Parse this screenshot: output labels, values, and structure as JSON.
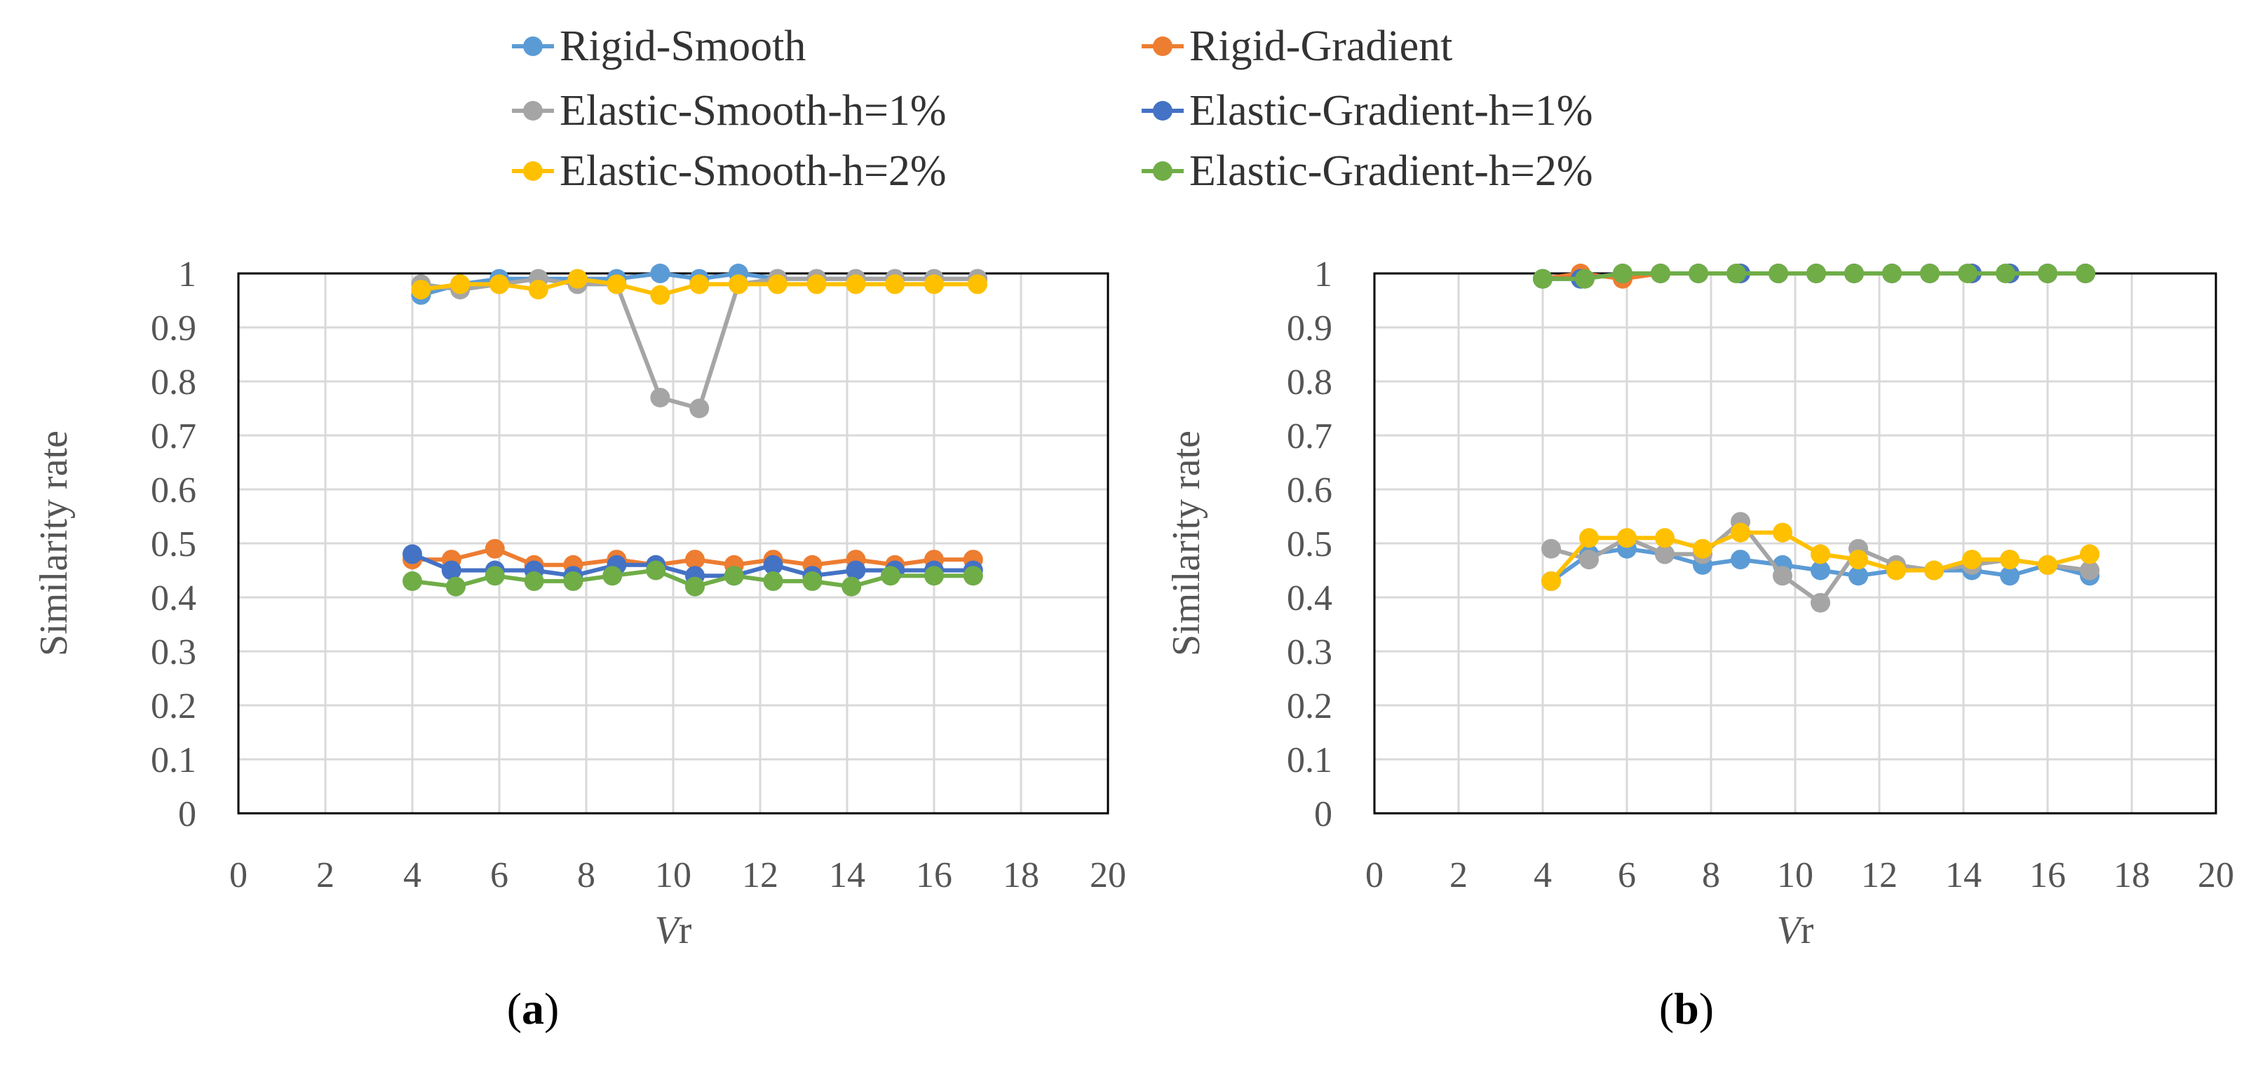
{
  "legend": [
    {
      "name": "Rigid-Smooth",
      "color": "#5B9BD5"
    },
    {
      "name": "Rigid-Gradient",
      "color": "#ED7D31"
    },
    {
      "name": "Elastic-Smooth-h=1%",
      "color": "#A5A5A5"
    },
    {
      "name": "Elastic-Gradient-h=1%",
      "color": "#4472C4"
    },
    {
      "name": "Elastic-Smooth-h=2%",
      "color": "#FFC000"
    },
    {
      "name": "Elastic-Gradient-h=2%",
      "color": "#70AD47"
    }
  ],
  "chart_data": [
    {
      "type": "line",
      "panel_label": "(a)",
      "xlabel_italic": "V",
      "xlabel_sub": "r",
      "ylabel": "Similarity rate",
      "xlim": [
        0,
        20
      ],
      "ylim": [
        0,
        1
      ],
      "x_ticks": [
        "0",
        "2",
        "4",
        "6",
        "8",
        "10",
        "12",
        "14",
        "16",
        "18",
        "20"
      ],
      "y_ticks": [
        "0",
        "0.1",
        "0.2",
        "0.3",
        "0.4",
        "0.5",
        "0.6",
        "0.7",
        "0.8",
        "0.9",
        "1"
      ],
      "series": [
        {
          "name": "Rigid-Smooth",
          "color": "#5B9BD5",
          "x": [
            4.2,
            5.1,
            6.0,
            6.9,
            7.8,
            8.7,
            9.7,
            10.6,
            11.5,
            12.4,
            13.3,
            14.2,
            15.1,
            16.0,
            17.0
          ],
          "y": [
            0.96,
            0.98,
            0.99,
            0.99,
            0.99,
            0.99,
            1.0,
            0.99,
            1.0,
            0.99,
            0.99,
            0.99,
            0.99,
            0.99,
            0.99
          ]
        },
        {
          "name": "Rigid-Gradient",
          "color": "#ED7D31",
          "x": [
            4.0,
            4.9,
            5.9,
            6.8,
            7.7,
            8.7,
            9.6,
            10.5,
            11.4,
            12.3,
            13.2,
            14.2,
            15.1,
            16.0,
            16.9
          ],
          "y": [
            0.47,
            0.47,
            0.49,
            0.46,
            0.46,
            0.47,
            0.46,
            0.47,
            0.46,
            0.47,
            0.46,
            0.47,
            0.46,
            0.47,
            0.47
          ]
        },
        {
          "name": "Elastic-Smooth-h=1%",
          "color": "#A5A5A5",
          "x": [
            4.2,
            5.1,
            6.0,
            6.9,
            7.8,
            8.7,
            9.7,
            10.6,
            11.5,
            12.4,
            13.3,
            14.2,
            15.1,
            16.0,
            17.0
          ],
          "y": [
            0.98,
            0.97,
            0.98,
            0.99,
            0.98,
            0.98,
            0.77,
            0.75,
            0.98,
            0.99,
            0.99,
            0.99,
            0.99,
            0.99,
            0.99
          ]
        },
        {
          "name": "Elastic-Gradient-h=1%",
          "color": "#4472C4",
          "x": [
            4.0,
            4.9,
            5.9,
            6.8,
            7.7,
            8.7,
            9.6,
            10.5,
            11.4,
            12.3,
            13.2,
            14.2,
            15.1,
            16.0,
            16.9
          ],
          "y": [
            0.48,
            0.45,
            0.45,
            0.45,
            0.44,
            0.46,
            0.46,
            0.44,
            0.44,
            0.46,
            0.44,
            0.45,
            0.45,
            0.45,
            0.45
          ]
        },
        {
          "name": "Elastic-Smooth-h=2%",
          "color": "#FFC000",
          "x": [
            4.2,
            5.1,
            6.0,
            6.9,
            7.8,
            8.7,
            9.7,
            10.6,
            11.5,
            12.4,
            13.3,
            14.2,
            15.1,
            16.0,
            17.0
          ],
          "y": [
            0.97,
            0.98,
            0.98,
            0.97,
            0.99,
            0.98,
            0.96,
            0.98,
            0.98,
            0.98,
            0.98,
            0.98,
            0.98,
            0.98,
            0.98
          ]
        },
        {
          "name": "Elastic-Gradient-h=2%",
          "color": "#70AD47",
          "x": [
            4.0,
            5.0,
            5.9,
            6.8,
            7.7,
            8.6,
            9.6,
            10.5,
            11.4,
            12.3,
            13.2,
            14.1,
            15.0,
            16.0,
            16.9
          ],
          "y": [
            0.43,
            0.42,
            0.44,
            0.43,
            0.43,
            0.44,
            0.45,
            0.42,
            0.44,
            0.43,
            0.43,
            0.42,
            0.44,
            0.44,
            0.44
          ]
        }
      ]
    },
    {
      "type": "line",
      "panel_label": "(b)",
      "xlabel_italic": "V",
      "xlabel_sub": "r",
      "ylabel": "Similarity rate",
      "xlim": [
        0,
        20
      ],
      "ylim": [
        0,
        1
      ],
      "x_ticks": [
        "0",
        "2",
        "4",
        "6",
        "8",
        "10",
        "12",
        "14",
        "16",
        "18",
        "20"
      ],
      "y_ticks": [
        "0",
        "0.1",
        "0.2",
        "0.3",
        "0.4",
        "0.5",
        "0.6",
        "0.7",
        "0.8",
        "0.9",
        "1"
      ],
      "series": [
        {
          "name": "Rigid-Smooth",
          "color": "#5B9BD5",
          "x": [
            4.2,
            5.1,
            6.0,
            6.9,
            7.8,
            8.7,
            9.7,
            10.6,
            11.5,
            12.4,
            13.3,
            14.2,
            15.1,
            16.0,
            17.0
          ],
          "y": [
            0.43,
            0.48,
            0.49,
            0.48,
            0.46,
            0.47,
            0.46,
            0.45,
            0.44,
            0.45,
            0.45,
            0.45,
            0.44,
            0.46,
            0.44
          ]
        },
        {
          "name": "Rigid-Gradient",
          "color": "#ED7D31",
          "x": [
            4.0,
            4.9,
            5.9,
            6.8,
            7.7,
            8.7,
            9.6,
            10.5,
            11.4,
            12.3,
            13.2,
            14.2,
            15.1,
            16.0,
            16.9
          ],
          "y": [
            0.99,
            1.0,
            0.99,
            1.0,
            1.0,
            1.0,
            1.0,
            1.0,
            1.0,
            1.0,
            1.0,
            1.0,
            1.0,
            1.0,
            1.0
          ]
        },
        {
          "name": "Elastic-Smooth-h=1%",
          "color": "#A5A5A5",
          "x": [
            4.2,
            5.1,
            6.0,
            6.9,
            7.8,
            8.7,
            9.7,
            10.6,
            11.5,
            12.4,
            13.3,
            14.2,
            15.1,
            16.0,
            17.0
          ],
          "y": [
            0.49,
            0.47,
            0.51,
            0.48,
            0.48,
            0.54,
            0.44,
            0.39,
            0.49,
            0.46,
            0.45,
            0.46,
            0.47,
            0.46,
            0.45
          ]
        },
        {
          "name": "Elastic-Gradient-h=1%",
          "color": "#4472C4",
          "x": [
            4.0,
            4.9,
            5.9,
            6.8,
            7.7,
            8.7,
            9.6,
            10.5,
            11.4,
            12.3,
            13.2,
            14.2,
            15.1,
            16.0,
            16.9
          ],
          "y": [
            0.99,
            0.99,
            1.0,
            1.0,
            1.0,
            1.0,
            1.0,
            1.0,
            1.0,
            1.0,
            1.0,
            1.0,
            1.0,
            1.0,
            1.0
          ]
        },
        {
          "name": "Elastic-Smooth-h=2%",
          "color": "#FFC000",
          "x": [
            4.2,
            5.1,
            6.0,
            6.9,
            7.8,
            8.7,
            9.7,
            10.6,
            11.5,
            12.4,
            13.3,
            14.2,
            15.1,
            16.0,
            17.0
          ],
          "y": [
            0.43,
            0.51,
            0.51,
            0.51,
            0.49,
            0.52,
            0.52,
            0.48,
            0.47,
            0.45,
            0.45,
            0.47,
            0.47,
            0.46,
            0.48
          ]
        },
        {
          "name": "Elastic-Gradient-h=2%",
          "color": "#70AD47",
          "x": [
            4.0,
            5.0,
            5.9,
            6.8,
            7.7,
            8.6,
            9.6,
            10.5,
            11.4,
            12.3,
            13.2,
            14.1,
            15.0,
            16.0,
            16.9
          ],
          "y": [
            0.99,
            0.99,
            1.0,
            1.0,
            1.0,
            1.0,
            1.0,
            1.0,
            1.0,
            1.0,
            1.0,
            1.0,
            1.0,
            1.0,
            1.0
          ]
        }
      ]
    }
  ]
}
